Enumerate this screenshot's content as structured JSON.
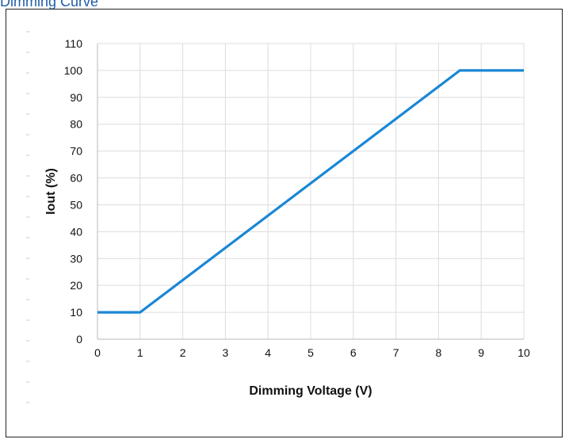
{
  "page": {
    "title": "Dimming Curve"
  },
  "chart_data": {
    "type": "line",
    "xlabel": "Dimming Voltage (V)",
    "ylabel": "Iout (%)",
    "xlim": [
      0,
      10
    ],
    "ylim": [
      0,
      110
    ],
    "xticks": [
      0,
      1,
      2,
      3,
      4,
      5,
      6,
      7,
      8,
      9,
      10
    ],
    "yticks": [
      0,
      10,
      20,
      30,
      40,
      50,
      60,
      70,
      80,
      90,
      100,
      110
    ],
    "grid": true,
    "series": [
      {
        "color": "#1a87d6",
        "x": [
          0,
          1,
          8.5,
          10
        ],
        "y": [
          10,
          10,
          100,
          100
        ]
      }
    ]
  }
}
